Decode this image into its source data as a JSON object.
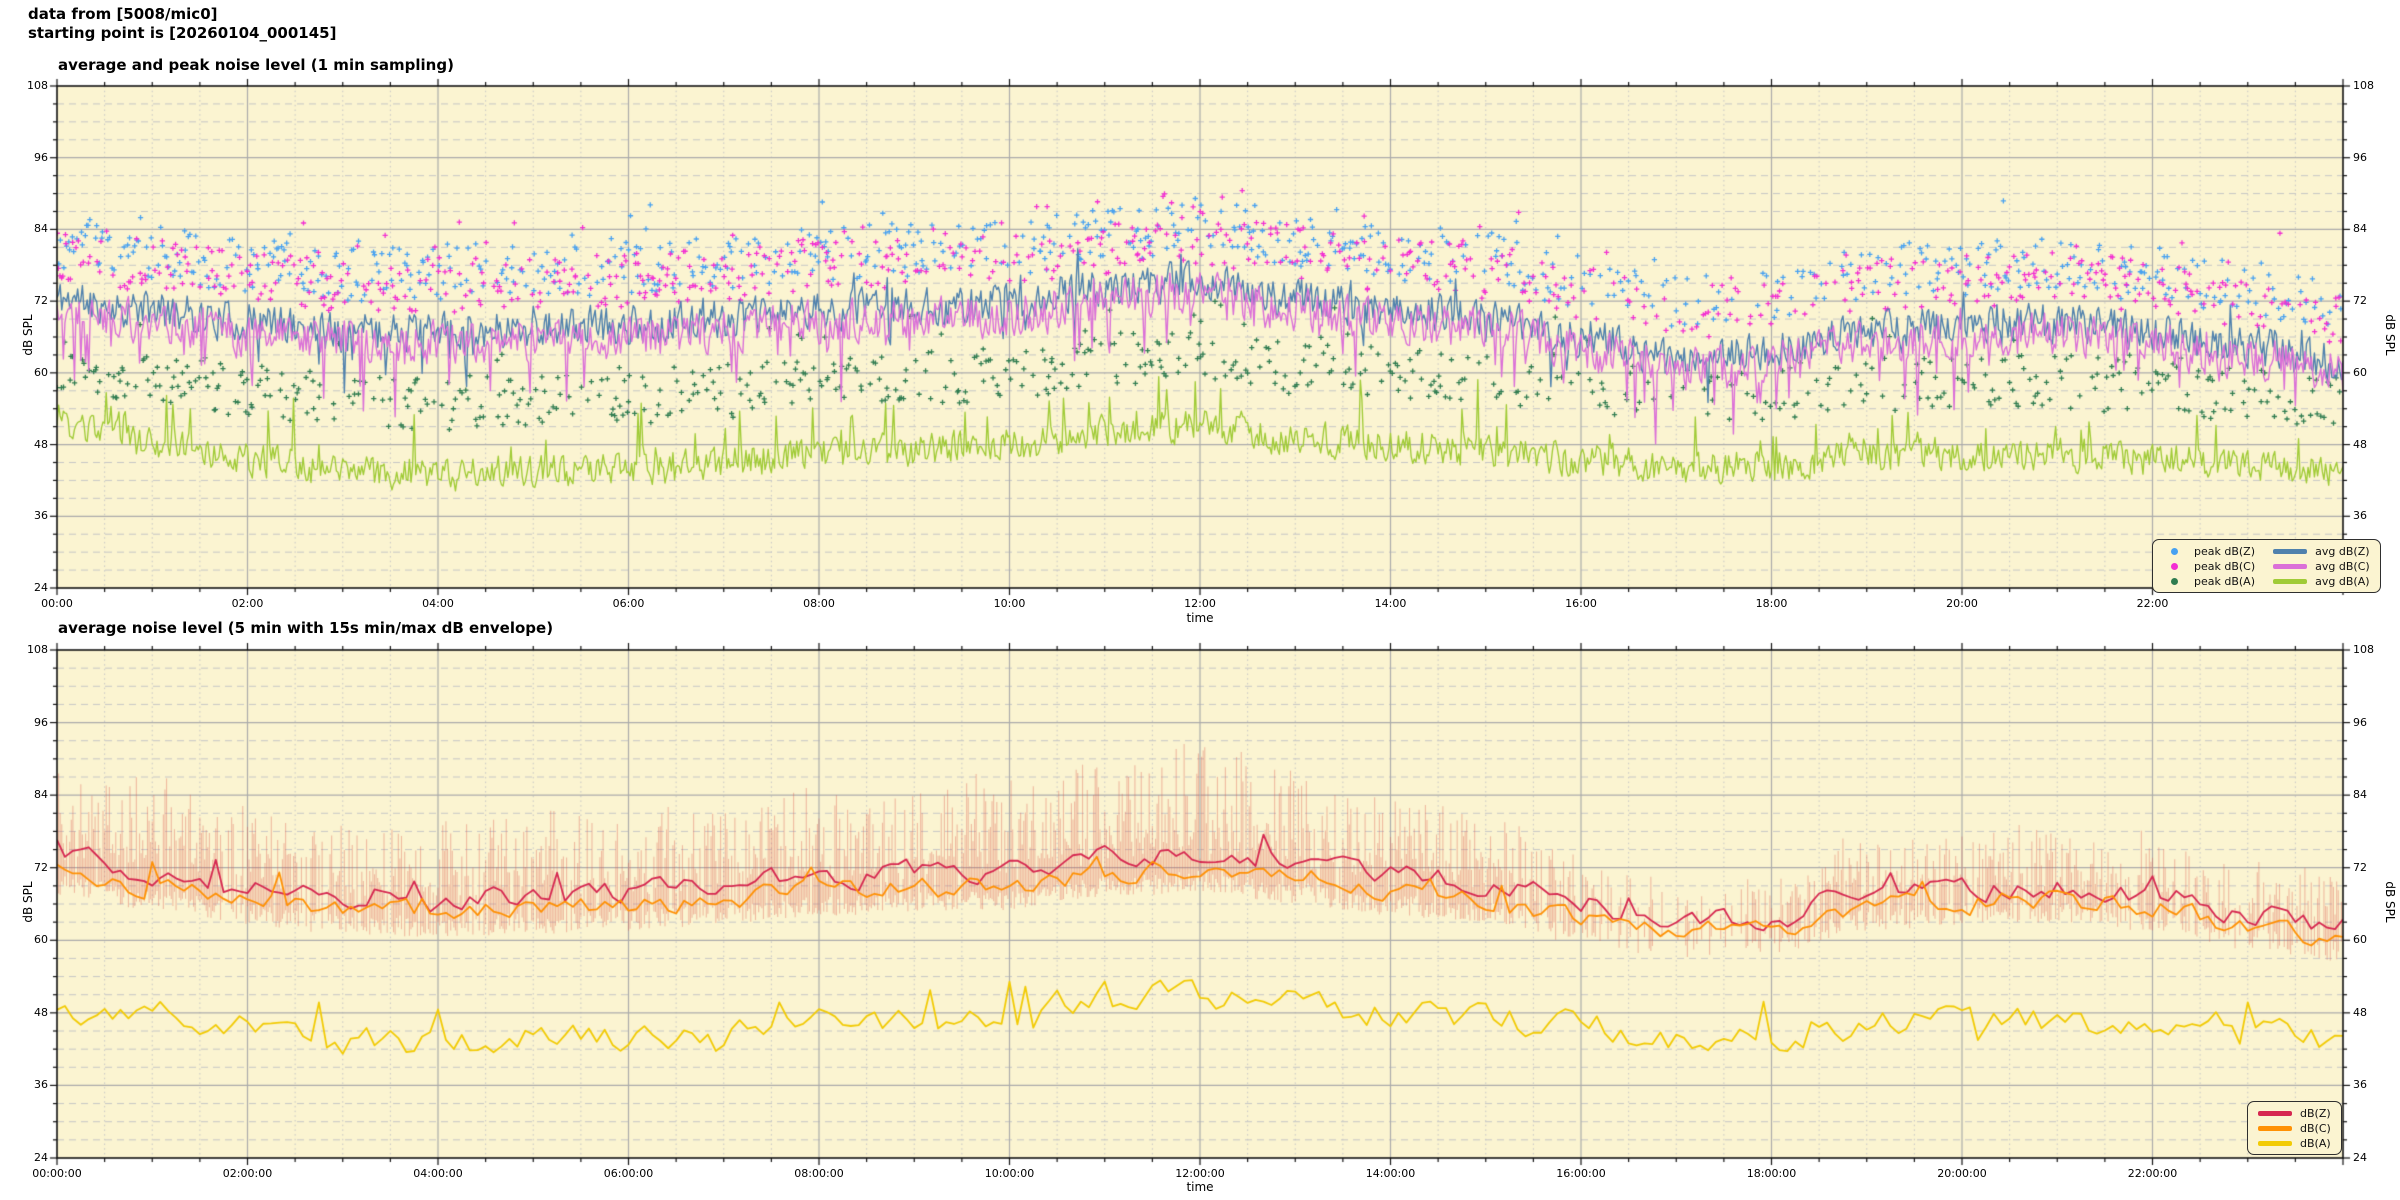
{
  "header": {
    "line1": "data from [5008/mic0]",
    "line2": "starting point is [20260104_000145]"
  },
  "colors": {
    "figure_bg": "#FFFFFF",
    "plot_bg": "#FBF4D1",
    "grid_major": "#ABABAB",
    "grid_minor": "#C6C6C6",
    "axis": "#111111",
    "legend_border": "#2F2F2F",
    "envelope": "rgba(221,92,80,0.38)"
  },
  "chart_data": [
    {
      "type": "line+scatter",
      "title": "average and peak noise level (1 min sampling)",
      "xlabel": "time",
      "ylabel_left": "dB SPL",
      "ylabel_right": "dB SPL",
      "ylim": [
        24,
        108
      ],
      "yticks": [
        24,
        36,
        48,
        60,
        72,
        84,
        96,
        108
      ],
      "y_minor_step_db": 3,
      "xlim_hours": [
        0,
        24
      ],
      "xticks_hours": [
        0,
        2,
        4,
        6,
        8,
        10,
        12,
        14,
        16,
        18,
        20,
        22
      ],
      "xtick_labels": [
        "00:00",
        "02:00",
        "04:00",
        "06:00",
        "08:00",
        "10:00",
        "12:00",
        "14:00",
        "16:00",
        "18:00",
        "20:00",
        "22:00"
      ],
      "x_minor_step_hours": 0.5,
      "grid": true,
      "sampling_minutes": 1,
      "trend_hours": [
        0,
        1,
        2,
        3,
        4,
        5,
        6,
        7,
        8,
        9,
        10,
        11,
        12,
        13,
        14,
        15,
        16,
        17,
        18,
        19,
        20,
        21,
        22,
        23,
        24
      ],
      "scatter_density_scale_hourly": [
        1,
        1,
        1,
        1,
        1,
        1,
        1,
        1,
        1,
        1,
        1,
        1.1,
        1.1,
        1,
        1,
        1,
        0.8,
        0.5,
        0.7,
        0.9,
        1,
        1,
        1,
        0.9,
        0.8
      ],
      "series": [
        {
          "name": "peak dB(Z)",
          "kind": "scatter",
          "color": "#47A1F1",
          "seed": 44,
          "trend_hourly": [
            82,
            80,
            78,
            76.5,
            76.5,
            77,
            77.5,
            78.5,
            80,
            80.5,
            81,
            83,
            84.5,
            82,
            80,
            79,
            75.5,
            72,
            73.5,
            76.5,
            77.5,
            78,
            76.5,
            74,
            71.5
          ],
          "spread_db": 4.5,
          "flier_prob": 0.08,
          "flier_db": 5,
          "density_per_min": 0.55
        },
        {
          "name": "peak dB(C)",
          "kind": "scatter",
          "color": "#F32ED2",
          "seed": 55,
          "trend_hourly": [
            80,
            78,
            76,
            74.5,
            74.5,
            75,
            75.5,
            76.5,
            78,
            78.5,
            79,
            81,
            82.5,
            80,
            78,
            77,
            73.5,
            70,
            71.5,
            74.5,
            75.5,
            76,
            74.5,
            72,
            69.5
          ],
          "spread_db": 4.5,
          "flier_prob": 0.08,
          "flier_db": 5,
          "density_per_min": 0.55
        },
        {
          "name": "peak dB(A)",
          "kind": "scatter",
          "color": "#2F7C50",
          "seed": 66,
          "trend_hourly": [
            62,
            59.5,
            57,
            55.5,
            55,
            55.5,
            56,
            57,
            58.5,
            59,
            60,
            62,
            63.5,
            61,
            60,
            59,
            57.5,
            56,
            56.5,
            58,
            58.5,
            58.5,
            57.5,
            56.5,
            55
          ],
          "spread_db": 4.5,
          "flier_prob": 0.08,
          "flier_db": 5,
          "density_per_min": 0.5
        },
        {
          "name": "avg dB(Z)",
          "kind": "line",
          "color": "#4F81AD",
          "width": 1.4,
          "seed": 11,
          "trend_hourly": [
            72.5,
            70.5,
            68.5,
            67,
            67,
            67.5,
            68,
            69,
            70.5,
            71,
            71.5,
            74,
            75.5,
            72.5,
            70.5,
            69.5,
            66,
            62,
            63.5,
            67,
            68,
            68.5,
            67,
            64.5,
            62
          ],
          "noise": {
            "persistence": 0.25,
            "amp": 3.0,
            "spike_prob": 0.06,
            "spike_min": -8,
            "spike_max": 5
          }
        },
        {
          "name": "avg dB(C)",
          "kind": "line",
          "color": "#DB70D8",
          "width": 1.4,
          "seed": 22,
          "trend_hourly": [
            70.5,
            68.5,
            66.5,
            65,
            65,
            65.5,
            66,
            67,
            68.5,
            69,
            69.5,
            72,
            73.5,
            70.5,
            68.5,
            67.5,
            64,
            60.5,
            61.5,
            65,
            66,
            66.5,
            65,
            62.5,
            60.5
          ],
          "noise": {
            "persistence": 0.25,
            "amp": 3.3,
            "spike_prob": 0.08,
            "spike_min": -11,
            "spike_max": 2
          }
        },
        {
          "name": "avg dB(A)",
          "kind": "line",
          "color": "#A0CB36",
          "width": 1.35,
          "seed": 33,
          "trend_hourly": [
            51,
            48,
            45.5,
            43.5,
            43,
            43.5,
            44,
            45,
            46.5,
            47,
            48,
            50,
            51.5,
            49,
            48,
            47,
            45.5,
            44,
            44.5,
            46,
            46.5,
            46.5,
            45.5,
            44.5,
            43
          ],
          "noise": {
            "persistence": 0.3,
            "amp": 2.5,
            "spike_prob": 0.07,
            "spike_min": -2,
            "spike_max": 9
          }
        }
      ],
      "legend": {
        "position": "bottom-right",
        "columns": [
          [
            {
              "label": "peak dB(Z)",
              "swatch": "dot",
              "color": "#47A1F1"
            },
            {
              "label": "peak dB(C)",
              "swatch": "dot",
              "color": "#F32ED2"
            },
            {
              "label": "peak dB(A)",
              "swatch": "dot",
              "color": "#2F7C50"
            }
          ],
          [
            {
              "label": "avg dB(Z)",
              "swatch": "line",
              "color": "#4F81AD"
            },
            {
              "label": "avg dB(C)",
              "swatch": "line",
              "color": "#DB70D8"
            },
            {
              "label": "avg dB(A)",
              "swatch": "line",
              "color": "#A0CB36"
            }
          ]
        ]
      }
    },
    {
      "type": "line+envelope",
      "title": "average noise level (5 min with 15s min/max dB envelope)",
      "xlabel": "time",
      "ylabel_left": "dB SPL",
      "ylabel_right": "dB SPL",
      "ylim": [
        24,
        108
      ],
      "yticks": [
        24,
        36,
        48,
        60,
        72,
        84,
        96,
        108
      ],
      "y_minor_step_db": 3,
      "xlim_hours": [
        0,
        24
      ],
      "xticks_hours": [
        0,
        2,
        4,
        6,
        8,
        10,
        12,
        14,
        16,
        18,
        20,
        22
      ],
      "xtick_labels": [
        "00:00:00",
        "02:00:00",
        "04:00:00",
        "06:00:00",
        "08:00:00",
        "10:00:00",
        "12:00:00",
        "14:00:00",
        "16:00:00",
        "18:00:00",
        "20:00:00",
        "22:00:00"
      ],
      "x_minor_step_hours": 0.5,
      "grid": true,
      "sampling_minutes": 5,
      "trend_hours": [
        0,
        1,
        2,
        3,
        4,
        5,
        6,
        7,
        8,
        9,
        10,
        11,
        12,
        13,
        14,
        15,
        16,
        17,
        18,
        19,
        20,
        21,
        22,
        23,
        24
      ],
      "envelope": {
        "description": "15s min/max dB envelope drawn as dense vertical strokes",
        "color": "rgba(221,92,80,0.38)",
        "upper_ref": "dB(Z)",
        "lower_ref": "dB(C)",
        "max_above_hourly": [
          15,
          14,
          13,
          12,
          12,
          12,
          12,
          13,
          14,
          14,
          15,
          16,
          17,
          15,
          13,
          12,
          9,
          5,
          7,
          9,
          9,
          10,
          9,
          8,
          8
        ],
        "below_lower_db": [
          0.5,
          4
        ],
        "density_per_min_hourly": [
          0.85,
          0.85,
          0.8,
          0.75,
          0.75,
          0.75,
          0.8,
          0.85,
          0.9,
          0.9,
          0.9,
          0.95,
          0.95,
          0.9,
          0.85,
          0.8,
          0.55,
          0.3,
          0.55,
          0.7,
          0.75,
          0.75,
          0.7,
          0.6,
          0.55
        ],
        "seed": 123
      },
      "series": [
        {
          "name": "dB(Z)",
          "kind": "line",
          "color": "#D62750",
          "width": 1.8,
          "seed": 77,
          "trend_hourly": [
            74,
            71.5,
            69,
            67.5,
            67,
            67.5,
            68,
            69,
            70.5,
            71,
            71.5,
            73.5,
            74.5,
            72.5,
            70.5,
            69.5,
            66,
            62.5,
            64,
            67.5,
            68.5,
            69,
            67.5,
            64.5,
            62.5
          ],
          "noise": {
            "persistence": 0.5,
            "amp": 1.6,
            "spike_prob": 0.07,
            "spike_min": -1,
            "spike_max": 4.5
          }
        },
        {
          "name": "dB(C)",
          "kind": "line",
          "color": "#FF9104",
          "width": 1.8,
          "seed": 88,
          "trend_hourly": [
            71.5,
            69,
            66.5,
            65,
            64.5,
            65,
            65.5,
            66.5,
            68,
            68.5,
            69,
            71,
            72,
            70,
            68,
            67,
            63.5,
            61,
            62,
            65.5,
            66.5,
            67,
            65.5,
            62.5,
            60.5
          ],
          "noise": {
            "persistence": 0.5,
            "amp": 1.5,
            "spike_prob": 0.06,
            "spike_min": -1,
            "spike_max": 4
          }
        },
        {
          "name": "dB(A)",
          "kind": "line",
          "color": "#F2CB05",
          "width": 1.8,
          "seed": 99,
          "trend_hourly": [
            49.5,
            47.5,
            45,
            43.5,
            43,
            43.5,
            44,
            45,
            46.5,
            47,
            48,
            50,
            51,
            49,
            48,
            47,
            45.5,
            44,
            44.5,
            46,
            46.5,
            46.5,
            45.5,
            44.5,
            43.5
          ],
          "noise": {
            "persistence": 0.5,
            "amp": 2.1,
            "spike_prob": 0.07,
            "spike_min": -3,
            "spike_max": 7
          }
        }
      ],
      "legend": {
        "position": "bottom-right",
        "columns": [
          [
            {
              "label": "dB(Z)",
              "swatch": "line",
              "color": "#D62750"
            },
            {
              "label": "dB(C)",
              "swatch": "line",
              "color": "#FF9104"
            },
            {
              "label": "dB(A)",
              "swatch": "line",
              "color": "#F2CB05"
            }
          ]
        ]
      }
    }
  ]
}
